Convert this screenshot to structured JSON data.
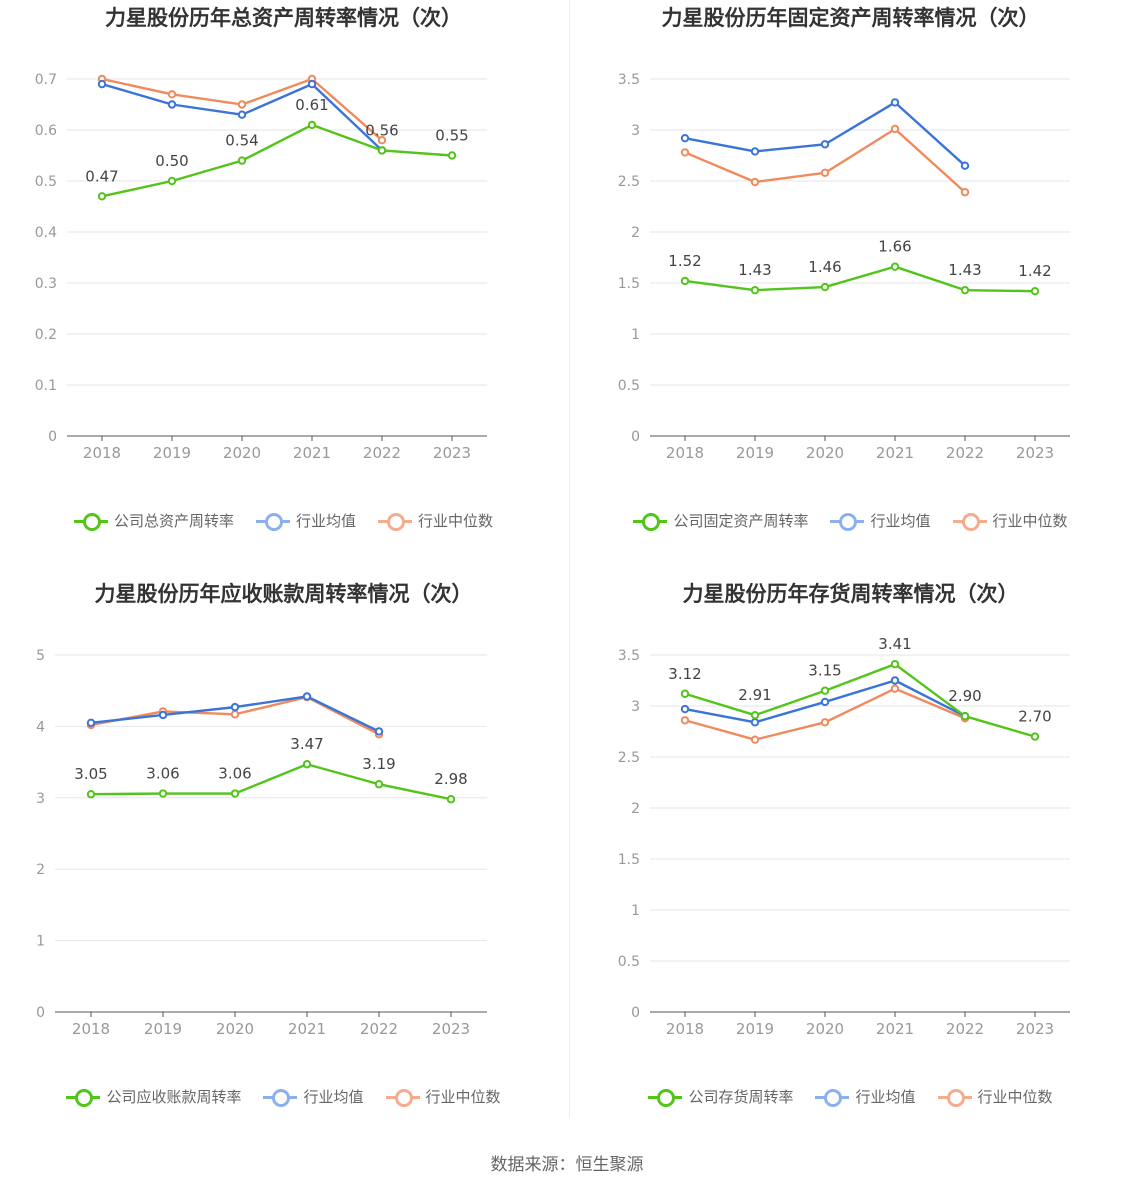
{
  "source": "数据来源：恒生聚源",
  "colors": {
    "company": "#52c41a",
    "avg": "#3b74d9",
    "median": "#f08a5d",
    "avg_legend": "#8cb0ee",
    "median_legend": "#f6ab8e"
  },
  "chart_data": [
    {
      "type": "line",
      "title": "力星股份历年总资产周转率情况（次）",
      "categories": [
        "2018",
        "2019",
        "2020",
        "2021",
        "2022",
        "2023"
      ],
      "ylim": [
        0,
        0.7
      ],
      "yticks": [
        "0",
        "0.1",
        "0.2",
        "0.3",
        "0.4",
        "0.5",
        "0.6",
        "0.7"
      ],
      "series": [
        {
          "name": "公司总资产周转率",
          "values": [
            0.47,
            0.5,
            0.54,
            0.61,
            0.56,
            0.55
          ],
          "labels": [
            "0.47",
            "0.50",
            "0.54",
            "0.61",
            "0.56",
            "0.55"
          ]
        },
        {
          "name": "行业均值",
          "values": [
            0.69,
            0.65,
            0.63,
            0.69,
            0.56,
            null
          ]
        },
        {
          "name": "行业中位数",
          "values": [
            0.7,
            0.67,
            0.65,
            0.7,
            0.58,
            null
          ]
        }
      ],
      "grid": true,
      "legend": "bottom"
    },
    {
      "type": "line",
      "title": "力星股份历年固定资产周转率情况（次）",
      "categories": [
        "2018",
        "2019",
        "2020",
        "2021",
        "2022",
        "2023"
      ],
      "ylim": [
        0,
        3.5
      ],
      "yticks": [
        "0",
        "0.5",
        "1",
        "1.5",
        "2",
        "2.5",
        "3",
        "3.5"
      ],
      "series": [
        {
          "name": "公司固定资产周转率",
          "values": [
            1.52,
            1.43,
            1.46,
            1.66,
            1.43,
            1.42
          ],
          "labels": [
            "1.52",
            "1.43",
            "1.46",
            "1.66",
            "1.43",
            "1.42"
          ]
        },
        {
          "name": "行业均值",
          "values": [
            2.92,
            2.79,
            2.86,
            3.27,
            2.65,
            null
          ]
        },
        {
          "name": "行业中位数",
          "values": [
            2.78,
            2.49,
            2.58,
            3.01,
            2.39,
            null
          ]
        }
      ],
      "grid": true,
      "legend": "bottom"
    },
    {
      "type": "line",
      "title": "力星股份历年应收账款周转率情况（次）",
      "categories": [
        "2018",
        "2019",
        "2020",
        "2021",
        "2022",
        "2023"
      ],
      "ylim": [
        0,
        5
      ],
      "yticks": [
        "0",
        "1",
        "2",
        "3",
        "4",
        "5"
      ],
      "series": [
        {
          "name": "公司应收账款周转率",
          "values": [
            3.05,
            3.06,
            3.06,
            3.47,
            3.19,
            2.98
          ],
          "labels": [
            "3.05",
            "3.06",
            "3.06",
            "3.47",
            "3.19",
            "2.98"
          ]
        },
        {
          "name": "行业均值",
          "values": [
            4.05,
            4.16,
            4.27,
            4.42,
            3.93,
            null
          ]
        },
        {
          "name": "行业中位数",
          "values": [
            4.02,
            4.21,
            4.17,
            4.41,
            3.89,
            null
          ]
        }
      ],
      "grid": true,
      "legend": "bottom"
    },
    {
      "type": "line",
      "title": "力星股份历年存货周转率情况（次）",
      "categories": [
        "2018",
        "2019",
        "2020",
        "2021",
        "2022",
        "2023"
      ],
      "ylim": [
        0,
        3.5
      ],
      "yticks": [
        "0",
        "0.5",
        "1",
        "1.5",
        "2",
        "2.5",
        "3",
        "3.5"
      ],
      "series": [
        {
          "name": "公司存货周转率",
          "values": [
            3.12,
            2.91,
            3.15,
            3.41,
            2.9,
            2.7
          ],
          "labels": [
            "3.12",
            "2.91",
            "3.15",
            "3.41",
            "2.90",
            "2.70"
          ]
        },
        {
          "name": "行业均值",
          "values": [
            2.97,
            2.84,
            3.04,
            3.25,
            2.9,
            null
          ]
        },
        {
          "name": "行业中位数",
          "values": [
            2.86,
            2.67,
            2.84,
            3.17,
            2.88,
            null
          ]
        }
      ],
      "grid": true,
      "legend": "bottom"
    }
  ]
}
